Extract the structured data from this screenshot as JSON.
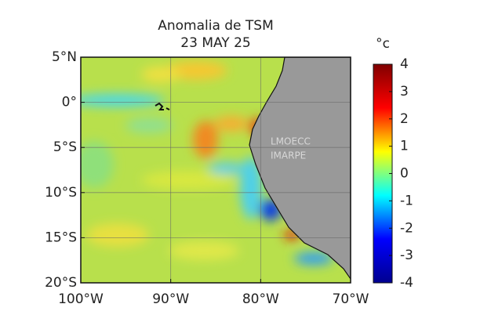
{
  "map": {
    "title": [
      "Anomalia de TSM",
      "23 MAY 25"
    ],
    "xlim": [
      -100,
      -70
    ],
    "ylim": [
      -20,
      5
    ],
    "xticks": [
      {
        "value": -100,
        "label": "100°W"
      },
      {
        "value": -90,
        "label": "90°W"
      },
      {
        "value": -80,
        "label": "80°W"
      },
      {
        "value": -70,
        "label": "70°W"
      }
    ],
    "yticks": [
      {
        "value": 5,
        "label": "5°N"
      },
      {
        "value": 0,
        "label": "0°"
      },
      {
        "value": -5,
        "label": "5°S"
      },
      {
        "value": -10,
        "label": "10°S"
      },
      {
        "value": -15,
        "label": "15°S"
      },
      {
        "value": -20,
        "label": "20°S"
      }
    ],
    "grid": true,
    "watermark": [
      "LMOECC",
      "IMARPE"
    ],
    "colorbar": {
      "label": "°c",
      "clim": [
        -4,
        4
      ],
      "ticks": [
        4,
        3,
        2,
        1,
        0,
        -1,
        -2,
        -3,
        -4
      ],
      "colors": [
        "#00008f",
        "#0000ff",
        "#00ffff",
        "#ffff00",
        "#ff0000",
        "#800000"
      ]
    }
  }
}
